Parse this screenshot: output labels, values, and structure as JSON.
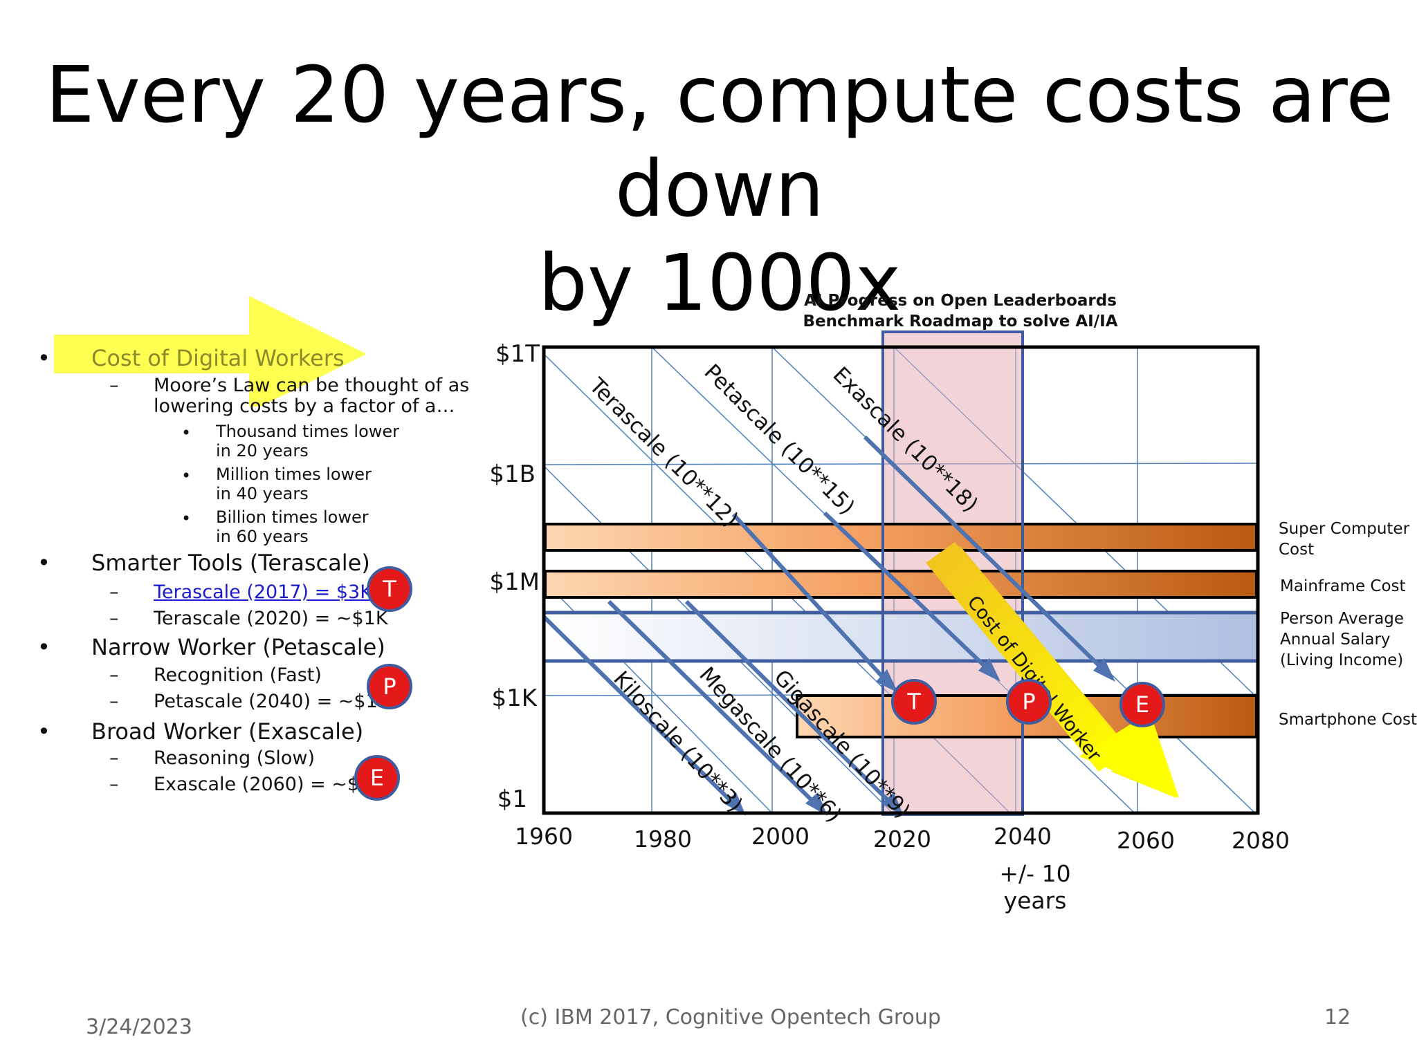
{
  "slide": {
    "title_line1": "Every 20 years, compute costs are down",
    "title_line2": "by 1000x",
    "date": "3/24/2023",
    "footer": "(c) IBM 2017, Cognitive Opentech Group",
    "page_number": "12",
    "highlight_color": "#ffff33"
  },
  "bullets": {
    "b1": "Cost of Digital Workers",
    "b1_sub": "Moore’s Law can be thought of as",
    "b1_sub2": "lowering costs by a factor of a…",
    "b1_items": [
      [
        "Thousand times lower",
        "in 20 years"
      ],
      [
        "Million times lower",
        "in 40 years"
      ],
      [
        "Billion times lower",
        "in 60 years"
      ]
    ],
    "b2": "Smarter Tools (Terascale)",
    "b2_sub1": "Terascale (2017) = $3K",
    "b2_sub2": "Terascale (2020) = ~$1K",
    "b3": "Narrow Worker (Petascale)",
    "b3_sub1": "Recognition (Fast)",
    "b3_sub2": "Petascale (2040) =  ~$1K",
    "b4": "Broad Worker (Exascale)",
    "b4_sub1": "Reasoning (Slow)",
    "b4_sub2": "Exascale (2060) = ~$1K",
    "bullet_glyph": "•",
    "dash_glyph": "–"
  },
  "badges": {
    "T": "T",
    "P": "P",
    "E": "E"
  },
  "chart_data": {
    "type": "diagram",
    "title_line1": "AI Progress on Open Leaderboards",
    "title_line2": "Benchmark Roadmap to solve AI/IA",
    "x_ticks": [
      "1960",
      "1980",
      "2000",
      "2020",
      "2040",
      "2060",
      "2080"
    ],
    "y_ticks": [
      "$1T",
      "$1B",
      "$1M",
      "$1K",
      "$1"
    ],
    "xlabel": "+/- 10 years",
    "scale_lines": [
      "Kiloscale (10**3)",
      "Megascale (10**6)",
      "Gigascale (10**9)",
      "Terascale (10**12)",
      "Petascale (10**15)",
      "Exascale (10**18)"
    ],
    "lanes": [
      {
        "label1": "Super Computer",
        "label2": "Cost",
        "label3": ""
      },
      {
        "label1": "Mainframe Cost",
        "label2": "",
        "label3": ""
      },
      {
        "label1": "Person Average",
        "label2": "Annual Salary",
        "label3": "(Living Income)"
      },
      {
        "label1": "Smartphone Cost",
        "label2": "",
        "label3": ""
      }
    ],
    "arrow_label": "Cost of Digital Worker",
    "window_years": [
      2018,
      2038
    ],
    "colors": {
      "grid": "#4f81bd",
      "band_start": "#fdd5b0",
      "band_end": "#b85c10",
      "salary_band": "#b8c7e3",
      "window": "#e8b8c0",
      "arrow": "#ffe000"
    }
  }
}
